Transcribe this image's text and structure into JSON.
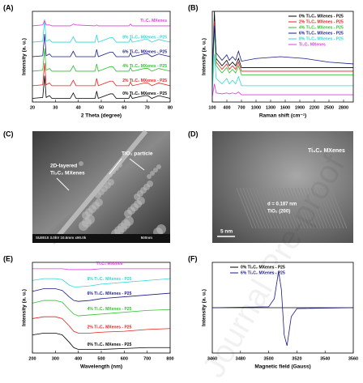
{
  "chart_data": [
    {
      "type": "line",
      "panel": "(A)",
      "xlabel": "2 Theta (degree)",
      "ylabel": "Intensity (a. u.)",
      "legend": "inline-right",
      "xlim": [
        20,
        80
      ],
      "xticks": [
        20,
        30,
        40,
        50,
        60,
        70,
        80
      ],
      "ylim": [
        0,
        100
      ],
      "x": [
        20,
        24.5,
        25.3,
        26,
        27.4,
        28.5,
        36.5,
        37.8,
        39,
        47.3,
        48,
        48.7,
        53.9,
        55,
        56.5,
        62,
        62.7,
        63.5,
        68.8,
        70.3,
        72,
        75,
        80
      ],
      "series": [
        {
          "name": "0% Ti₃C₂ MXenes - P25",
          "color": "#000000",
          "values": [
            4,
            5,
            29,
            5,
            7,
            4,
            4,
            10,
            4,
            4,
            12,
            4,
            9,
            9,
            4,
            4,
            8,
            4,
            7,
            7,
            4,
            7,
            4
          ]
        },
        {
          "name": "2% Ti₃C₂ MXenes - P25",
          "color": "#e8201c",
          "values": [
            18,
            19,
            43,
            19,
            21,
            18,
            18,
            24,
            18,
            18,
            26,
            18,
            23,
            23,
            18,
            18,
            22,
            18,
            21,
            21,
            18,
            21,
            18
          ]
        },
        {
          "name": "4% Ti₃C₂ MXenes - P25",
          "color": "#2fbf2f",
          "values": [
            34,
            35,
            59,
            35,
            37,
            34,
            34,
            40,
            34,
            34,
            42,
            34,
            39,
            39,
            34,
            34,
            38,
            34,
            37,
            37,
            34,
            37,
            34
          ]
        },
        {
          "name": "6% Ti₃C₂ MXenes - P25",
          "color": "#1a1a8c",
          "values": [
            50,
            51,
            75,
            51,
            53,
            50,
            50,
            56,
            50,
            50,
            58,
            50,
            55,
            55,
            50,
            50,
            54,
            50,
            53,
            53,
            50,
            53,
            50
          ]
        },
        {
          "name": "8% Ti₃C₂ MXenes - P25",
          "color": "#2fd6d6",
          "values": [
            66,
            67,
            91,
            67,
            69,
            66,
            66,
            72,
            66,
            66,
            74,
            66,
            71,
            71,
            66,
            66,
            70,
            66,
            69,
            69,
            66,
            69,
            66
          ]
        },
        {
          "name": "Ti₃C₂ MXenes",
          "color": "#e03ce0",
          "values": [
            84,
            85,
            90,
            85,
            85,
            84,
            84,
            86,
            85,
            84,
            85,
            84,
            84,
            84,
            84,
            84,
            86,
            84,
            84,
            84,
            84,
            84,
            84
          ]
        }
      ]
    },
    {
      "type": "line",
      "panel": "(B)",
      "xlabel": "Raman shift (cm⁻¹)",
      "ylabel": "Intensity (a. u.)",
      "legend": "upper right",
      "xlim": [
        100,
        3000
      ],
      "xticks": [
        100,
        400,
        700,
        1000,
        1300,
        1600,
        1900,
        2200,
        2500,
        2800
      ],
      "ylim": [
        0,
        100
      ],
      "x": [
        100,
        144,
        180,
        300,
        397,
        450,
        515,
        580,
        639,
        700,
        1000,
        1500,
        2000,
        2500,
        3000
      ],
      "series": [
        {
          "name": "0% Ti₃C₂ MXenes - P25",
          "color": "#000000",
          "values": [
            30,
            100,
            48,
            40,
            46,
            40,
            44,
            40,
            48,
            38,
            38,
            38,
            38,
            38,
            38
          ]
        },
        {
          "name": "2% Ti₃C₂ MXenes - P25",
          "color": "#e8201c",
          "values": [
            26,
            89,
            44,
            36,
            42,
            36,
            40,
            36,
            44,
            34,
            34,
            34,
            34,
            34,
            34
          ]
        },
        {
          "name": "4% Ti₃C₂ MXenes - P25",
          "color": "#2fbf2f",
          "values": [
            22,
            80,
            40,
            32,
            38,
            32,
            36,
            32,
            40,
            30,
            30,
            30,
            30,
            30,
            30
          ]
        },
        {
          "name": "6% Ti₃C₂ MXenes - P25",
          "color": "#1a1a8c",
          "values": [
            36,
            84,
            54,
            46,
            52,
            46,
            50,
            46,
            56,
            45,
            48,
            50,
            48,
            44,
            42
          ]
        },
        {
          "name": "8% Ti₃C₂ MXenes - P25",
          "color": "#2fd6d6",
          "values": [
            12,
            53,
            26,
            20,
            26,
            20,
            24,
            20,
            28,
            18,
            18,
            18,
            18,
            18,
            18
          ]
        },
        {
          "name": "Ti₃C₂ MXenes",
          "color": "#e03ce0",
          "values": [
            6,
            20,
            10,
            9,
            10,
            9,
            10,
            9,
            11,
            8,
            8,
            8,
            8,
            8,
            8
          ]
        }
      ]
    },
    {
      "type": "line",
      "panel": "(E)",
      "xlabel": "Wavelength (nm)",
      "ylabel": "Intensity (a. u.)",
      "legend": "inline-center",
      "xlim": [
        200,
        800
      ],
      "xticks": [
        200,
        300,
        400,
        500,
        600,
        700,
        800
      ],
      "ylim": [
        0,
        100
      ],
      "x": [
        200,
        250,
        300,
        330,
        360,
        380,
        400,
        450,
        500,
        600,
        700,
        800
      ],
      "series": [
        {
          "name": "0% Ti₃C₂ MXenes - P25",
          "color": "#000000",
          "values": [
            20,
            22,
            22,
            20,
            12,
            6,
            4,
            4,
            4,
            5,
            6,
            6
          ]
        },
        {
          "name": "2% Ti₃C₂ MXenes - P25",
          "color": "#e8201c",
          "values": [
            38,
            40,
            40,
            38,
            30,
            24,
            22,
            22,
            23,
            24,
            26,
            27
          ]
        },
        {
          "name": "4% Ti₃C₂ MXenes - P25",
          "color": "#2fbf2f",
          "values": [
            55,
            58,
            58,
            56,
            48,
            43,
            41,
            42,
            43,
            45,
            47,
            48
          ]
        },
        {
          "name": "6% Ti₃C₂ MXenes - P25",
          "color": "#1a1a8c",
          "values": [
            68,
            71,
            71,
            69,
            62,
            58,
            57,
            58,
            60,
            62,
            64,
            66
          ]
        },
        {
          "name": "8% Ti₃C₂ MXenes - P25",
          "color": "#2fd6d6",
          "values": [
            80,
            82,
            82,
            81,
            75,
            73,
            73,
            74,
            76,
            78,
            80,
            82
          ]
        },
        {
          "name": "Ti₃C₂ MXenes",
          "color": "#e03ce0",
          "values": [
            93,
            93,
            93,
            93,
            92,
            92,
            92,
            92,
            93,
            93,
            93,
            93
          ]
        }
      ]
    },
    {
      "type": "line",
      "panel": "(F)",
      "xlabel": "Magnetic field (Gauss)",
      "ylabel": "Intensity (a. u.)",
      "legend": "upper center",
      "xlim": [
        3460,
        3560
      ],
      "xticks": [
        3460,
        3480,
        3500,
        3520,
        3540,
        3560
      ],
      "ylim": [
        0,
        100
      ],
      "x": [
        3460,
        3500,
        3504,
        3507,
        3509,
        3511,
        3513,
        3516,
        3520,
        3560
      ],
      "series": [
        {
          "name": "0% Ti₃C₂ MXenes - P25",
          "color": "#000000",
          "values": [
            50,
            50,
            50,
            50,
            50,
            50,
            50,
            50,
            50,
            50
          ]
        },
        {
          "name": "6% Ti₃C₂ MXenes - P25",
          "color": "#1a1a8c",
          "values": [
            50,
            51,
            60,
            90,
            70,
            20,
            8,
            40,
            49,
            50
          ]
        }
      ]
    }
  ],
  "images": [
    {
      "panel": "(C)",
      "annotations": [
        "2D-layered",
        "Ti₃C₂ MXenes",
        "TiO₂ particle",
        "SU8010 3.0kV 10.6mm x90.0k",
        "500nm"
      ]
    },
    {
      "panel": "(D)",
      "annotations": [
        "Ti₃C₂ MXenes",
        "d = 0.187 nm",
        "TiO₂ (200)",
        "5 nm"
      ]
    }
  ],
  "watermark": "Journal Pre-proof"
}
